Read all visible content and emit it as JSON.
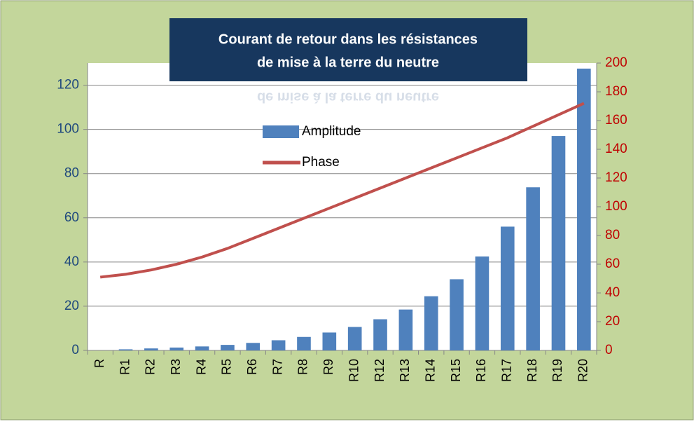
{
  "chart_data": {
    "type": "bar_line",
    "title": "Courant de retour dans les résistances de mise à la terre du neutre",
    "title_lines": [
      "Courant de retour dans les résistances",
      "de mise à la terre du neutre"
    ],
    "categories": [
      "R",
      "R1",
      "R2",
      "R3",
      "R4",
      "R5",
      "R6",
      "R7",
      "R8",
      "R9",
      "R10",
      "R12",
      "R13",
      "R14",
      "R15",
      "R16",
      "R17",
      "R18",
      "R19",
      "R20"
    ],
    "series": [
      {
        "name": "Amplitude",
        "type": "bar",
        "color": "#4f81bd",
        "values": [
          0,
          0.5,
          0.9,
          1.3,
          1.8,
          2.5,
          3.4,
          4.6,
          6.1,
          8.1,
          10.6,
          14.1,
          18.5,
          24.5,
          32.2,
          42.5,
          56,
          73.8,
          97,
          127.5
        ]
      },
      {
        "name": "Phase",
        "type": "line",
        "axis": "y2",
        "color": "#c0504d",
        "values": [
          51,
          53,
          56,
          60,
          65,
          71,
          78,
          85,
          92,
          99,
          106,
          113,
          120,
          127,
          134,
          141,
          148,
          156,
          164,
          172
        ]
      }
    ],
    "ylim": [
      0,
      130
    ],
    "yticks": [
      0,
      20,
      40,
      60,
      80,
      100,
      120
    ],
    "y2lim": [
      0,
      200
    ],
    "y2ticks": [
      0,
      20,
      40,
      60,
      80,
      100,
      120,
      140,
      160,
      180,
      200
    ],
    "grid": true,
    "legend": "top"
  }
}
